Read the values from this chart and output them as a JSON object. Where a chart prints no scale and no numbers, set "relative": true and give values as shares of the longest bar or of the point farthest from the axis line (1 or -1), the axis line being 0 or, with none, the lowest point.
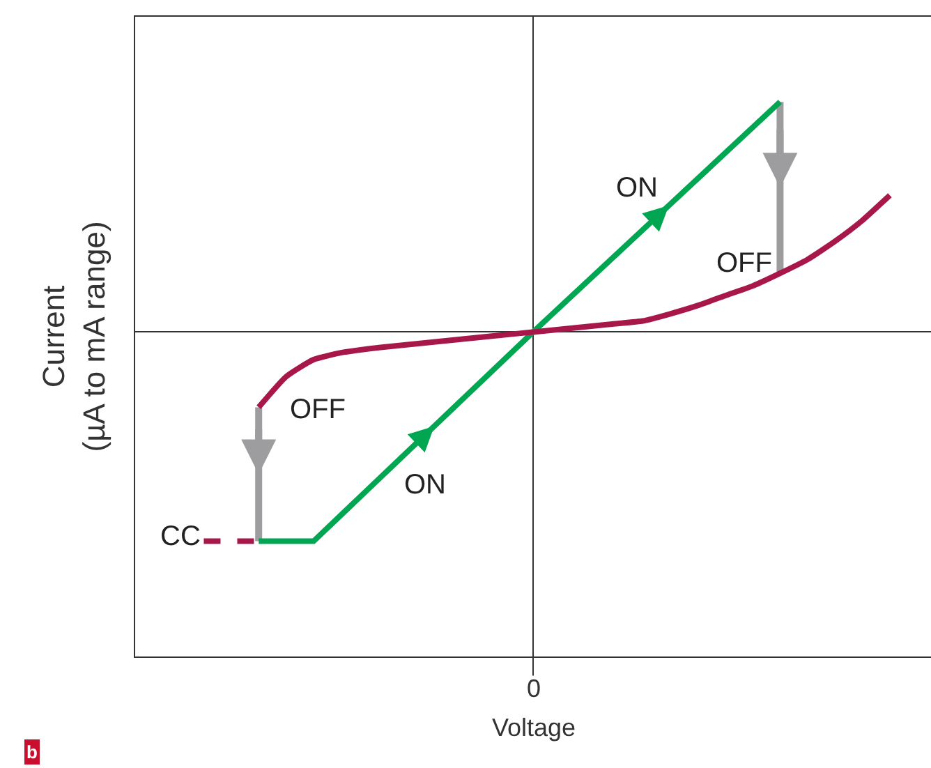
{
  "chart_data": {
    "type": "line",
    "relative": true,
    "ylabel": "Current\n(µA to mA range)",
    "categories": [
      null,
      null,
      null,
      null,
      null,
      null,
      null,
      null,
      null,
      null,
      null,
      null,
      null,
      null,
      null,
      null,
      null,
      null,
      null,
      null,
      null,
      null,
      null,
      null,
      null,
      null,
      null,
      null,
      null
    ],
    "series": [
      {
        "color": "#00a651",
        "values": [
          null,
          null,
          null,
          null,
          -0.909,
          null,
          -0.909,
          null,
          null,
          null,
          null,
          null,
          null,
          null,
          0,
          null,
          null,
          null,
          null,
          null,
          null,
          null,
          null,
          1.0,
          null,
          null,
          null,
          null,
          null
        ]
      },
      {
        "color": "#a8174a",
        "values": [
          null,
          null,
          null,
          null,
          -0.327,
          -0.194,
          -0.12,
          -0.09,
          -0.073,
          -0.06,
          -0.048,
          -0.036,
          -0.024,
          -0.012,
          0,
          0.012,
          0.024,
          0.036,
          0.048,
          0.079,
          0.115,
          0.158,
          0.2,
          0.255,
          0.315,
          0.394,
          0.485,
          0.594,
          null
        ]
      },
      {
        "color": "#a8174a",
        "line_style": "dashed",
        "values": [
          null,
          null,
          -0.909,
          null,
          -0.909,
          null,
          null,
          null,
          null,
          null,
          null,
          null,
          null,
          null,
          null,
          null,
          null,
          null,
          null,
          null,
          null,
          null,
          null,
          null,
          null,
          null,
          null,
          null,
          null
        ]
      }
    ],
    "annotations": [
      "ON",
      "OFF",
      "OFF",
      "ON",
      "CC",
      "0",
      "Voltage",
      "b"
    ]
  }
}
